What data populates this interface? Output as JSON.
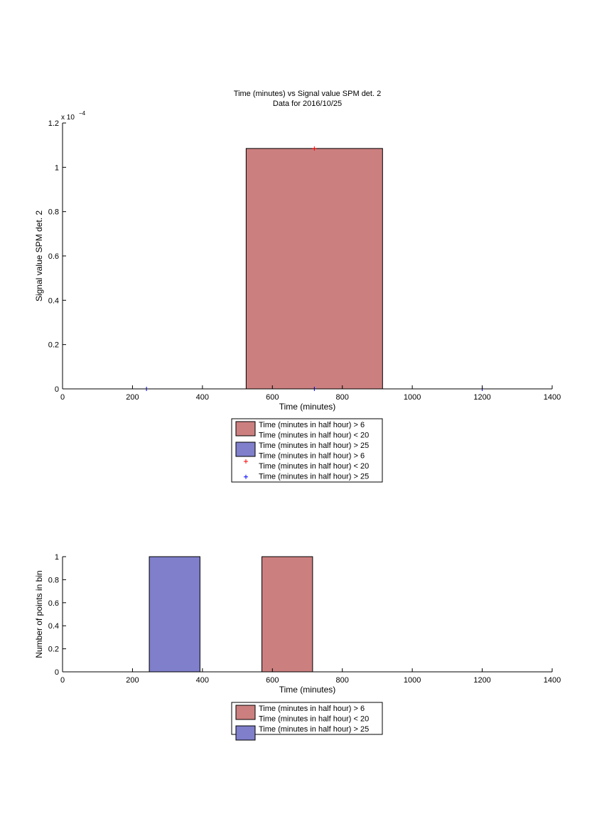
{
  "chart_data": [
    {
      "type": "bar",
      "title": "Time (minutes) vs Signal value SPM det. 2",
      "subtitle": "Data for 2016/10/25",
      "xlabel": "Time (minutes)",
      "ylabel": "Signal value SPM det. 2",
      "xlim": [
        0,
        1400
      ],
      "ylim": [
        0,
        0.00012
      ],
      "x_ticks": [
        0,
        200,
        400,
        600,
        800,
        1000,
        1200,
        1400
      ],
      "y_ticks": [
        0,
        0.2,
        0.4,
        0.6,
        0.8,
        1,
        1.2
      ],
      "y_tick_labels": [
        "0",
        "0.2",
        "0.4",
        "0.6",
        "0.8",
        "1",
        "1.2"
      ],
      "y_exponent_label": "x 10",
      "y_exponent_power": "−4",
      "y_scale_factor": 0.0001,
      "grid": false,
      "legend_position": "below",
      "series": [
        {
          "name": "Time (minutes in half hour) > 6\nTime (minutes in half hour) < 20",
          "kind": "bar",
          "color": "#cc7f7f",
          "bars": [
            {
              "x0": 525,
              "x1": 915,
              "y": 0.0001085
            }
          ]
        },
        {
          "name": "Time (minutes in half hour) > 25",
          "kind": "bar",
          "color": "#7f7fcc",
          "bars": []
        },
        {
          "name": "Time (minutes in half hour) > 6\nTime (minutes in half hour) < 20",
          "kind": "marker",
          "color": "#ff0000",
          "points": [
            {
              "x": 720,
              "y": 0.0001085
            }
          ]
        },
        {
          "name": "Time (minutes in half hour) > 25",
          "kind": "marker",
          "color": "#0000ff",
          "points": [
            {
              "x": 240,
              "y": 0
            },
            {
              "x": 720,
              "y": 0
            },
            {
              "x": 1200,
              "y": 0
            }
          ]
        }
      ]
    },
    {
      "type": "bar",
      "title": "",
      "xlabel": "Time (minutes)",
      "ylabel": "Number of points in bin",
      "xlim": [
        0,
        1400
      ],
      "ylim": [
        0,
        1
      ],
      "x_ticks": [
        0,
        200,
        400,
        600,
        800,
        1000,
        1200,
        1400
      ],
      "y_ticks": [
        0,
        0.2,
        0.4,
        0.6,
        0.8,
        1
      ],
      "y_tick_labels": [
        "0",
        "0.2",
        "0.4",
        "0.6",
        "0.8",
        "1"
      ],
      "grid": false,
      "legend_position": "below",
      "series": [
        {
          "name": "Time (minutes in half hour) > 6\nTime (minutes in half hour) < 20",
          "kind": "bar",
          "color": "#cc7f7f",
          "bars": [
            {
              "x0": 570,
              "x1": 715,
              "y": 1
            }
          ]
        },
        {
          "name": "Time (minutes in half hour) > 25",
          "kind": "bar",
          "color": "#7f7fcc",
          "bars": [
            {
              "x0": 248,
              "x1": 393,
              "y": 1
            }
          ]
        }
      ]
    }
  ]
}
